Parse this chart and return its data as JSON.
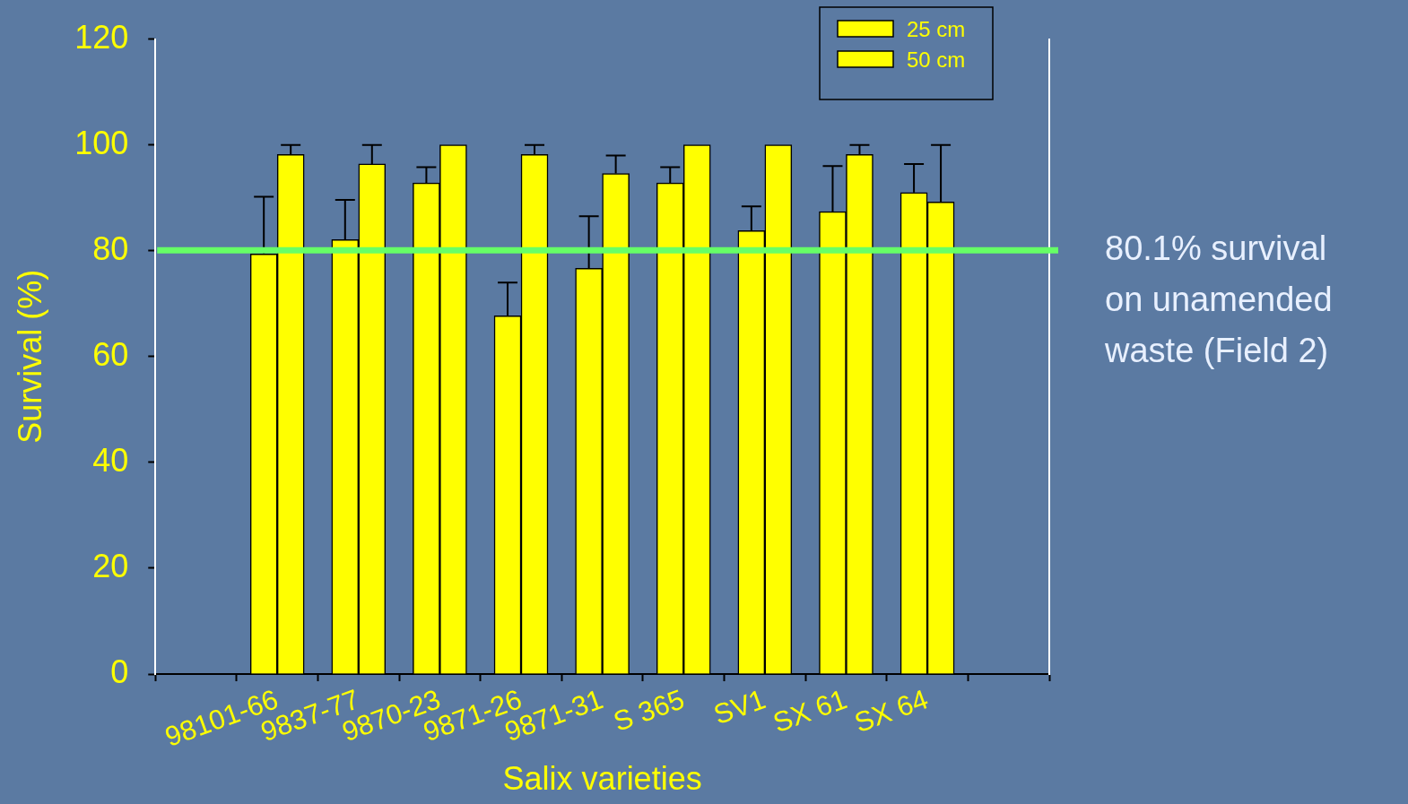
{
  "chart_data": {
    "type": "bar",
    "xlabel": "Salix varieties",
    "ylabel": "Survival (%)",
    "categories": [
      "98101-66",
      "9837-77",
      "9870-23",
      "9871-26",
      "9871-31",
      "S 365",
      "SV1",
      "SX 61",
      "SX 64"
    ],
    "series": [
      {
        "name": "25 cm",
        "color": "#ffff00",
        "values": [
          79.4,
          82.1,
          92.8,
          67.7,
          76.7,
          92.8,
          83.8,
          87.4,
          91.0
        ],
        "errors": [
          [
            79.4,
            90.2
          ],
          [
            82.1,
            89.6
          ],
          [
            92.8,
            95.8
          ],
          [
            67.7,
            74.0
          ],
          [
            76.7,
            86.5
          ],
          [
            92.8,
            95.8
          ],
          [
            83.8,
            88.4
          ],
          [
            87.4,
            96.0
          ],
          [
            91.0,
            96.4
          ]
        ]
      },
      {
        "name": "50 cm",
        "color": "#ffff00",
        "values": [
          98.2,
          96.4,
          100,
          98.2,
          94.6,
          100,
          100,
          98.2,
          89.2
        ],
        "errors": [
          [
            98.2,
            100
          ],
          [
            96.4,
            100
          ],
          null,
          [
            98.2,
            100
          ],
          [
            94.6,
            98.0
          ],
          null,
          null,
          [
            98.2,
            100
          ],
          [
            89.2,
            100
          ]
        ]
      }
    ],
    "ylim": [
      0,
      120
    ],
    "yticks": [
      0,
      20,
      40,
      60,
      80,
      100,
      120
    ],
    "grid": false,
    "legend": "top right",
    "ref_lines": [
      {
        "axis": "y",
        "value": 80.1,
        "label": "80.1% survival on unamended waste (Field 2)",
        "color": "#66ff66"
      }
    ]
  }
}
